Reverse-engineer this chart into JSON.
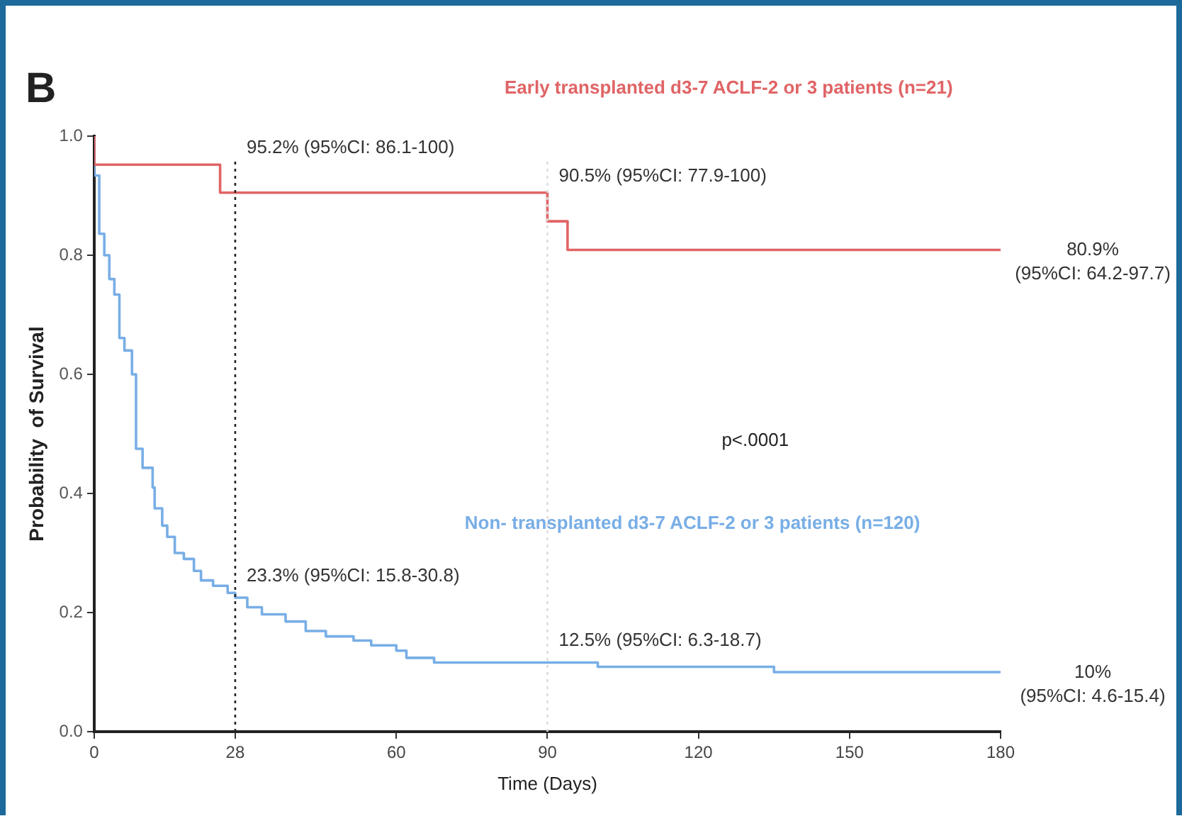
{
  "chart_data": {
    "type": "step",
    "ylabel": "Probability  of Survival",
    "xlabel": "Time (Days)",
    "annotations": [
      "B",
      "p<.0001",
      {
        "text": "95.2% (95%CI: 86.1-100)",
        "x": 28,
        "y": 0.952
      },
      {
        "text": "90.5% (95%CI: 77.9-100)",
        "x": 90,
        "y": 0.905
      },
      {
        "text": "80.9%\n(95%CI: 64.2-97.7)",
        "x": 180,
        "y": 0.809
      },
      {
        "text": "23.3% (95%CI: 15.8-30.8)",
        "x": 28,
        "y": 0.233
      },
      {
        "text": "12.5% (95%CI: 6.3-18.7)",
        "x": 90,
        "y": 0.125
      },
      {
        "text": "10%\n(95%CI: 4.6-15.4)",
        "x": 180,
        "y": 0.1
      }
    ],
    "series": [
      {
        "name": "Early transplanted d3-7 ACLF-2 or 3 patients (n=21)",
        "color": "#e06466",
        "x": [
          0,
          25,
          90,
          94,
          96,
          180
        ],
        "values": [
          1,
          0.952,
          0.905,
          0.857,
          0.809,
          0.809
        ]
      },
      {
        "name": "Non- transplanted d3-7 ACLF-2 or 3 patients (n=120)",
        "color": "#78aee6",
        "x": [
          0,
          1,
          2,
          3,
          4,
          5,
          6,
          7.5,
          8.3,
          9.6,
          11.6,
          12,
          13.5,
          14.5,
          16,
          17.8,
          19.8,
          21.2,
          23.6,
          26.5,
          28,
          30.4,
          33.3,
          38,
          42,
          46,
          51.5,
          55,
          60,
          62,
          67.5,
          100,
          135,
          150,
          180
        ],
        "values": [
          1,
          0.934,
          0.836,
          0.8,
          0.76,
          0.734,
          0.661,
          0.64,
          0.6,
          0.475,
          0.443,
          0.41,
          0.375,
          0.346,
          0.327,
          0.3,
          0.29,
          0.27,
          0.254,
          0.245,
          0.233,
          0.225,
          0.209,
          0.197,
          0.185,
          0.169,
          0.16,
          0.153,
          0.145,
          0.136,
          0.124,
          0.116,
          0.109,
          0.1,
          0.1
        ]
      }
    ],
    "ref_lines": [
      {
        "axis": "x",
        "value": 28,
        "color": "#222222",
        "line_style": "dotted"
      },
      {
        "axis": "x",
        "value": 90,
        "color": "#dddddd",
        "line_style": "dotted"
      }
    ],
    "xlim": [
      0,
      180
    ],
    "xticks": [
      0,
      28,
      60,
      90,
      120,
      150,
      180
    ],
    "ylim": [
      0,
      1
    ],
    "yticks": [
      {
        "value": 0,
        "label": "0.0"
      },
      {
        "value": 0.2,
        "label": "0.2"
      },
      {
        "value": 0.4,
        "label": "0.4"
      },
      {
        "value": 0.6,
        "label": "0.6"
      },
      {
        "value": 0.8,
        "label": "0.8"
      },
      {
        "value": 1,
        "label": "1.0"
      }
    ],
    "grid": false,
    "legend": false,
    "marker": "none",
    "line_style": "solid"
  }
}
